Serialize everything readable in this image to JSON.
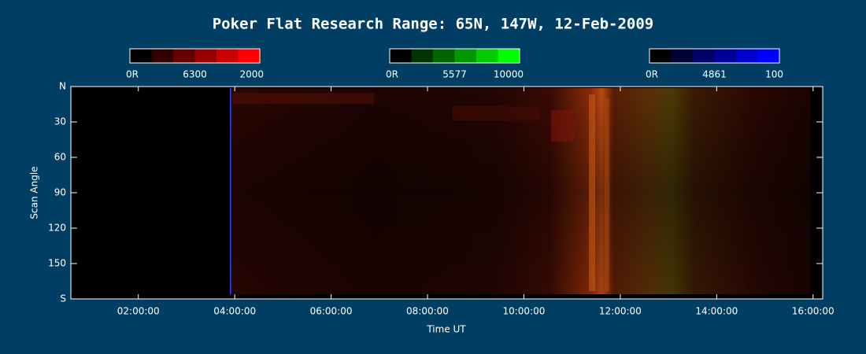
{
  "chart_data": {
    "type": "keogram",
    "title": "Poker Flat Research Range: 65N, 147W, 12-Feb-2009",
    "xlabel": "Time UT",
    "ylabel": "Scan Angle",
    "colorbars": [
      {
        "min_label": "0R",
        "name": "6300",
        "max_label": "2000",
        "colors": [
          "#000000",
          "#330000",
          "#660000",
          "#990000",
          "#cc0000",
          "#ff0000"
        ]
      },
      {
        "min_label": "0R",
        "name": "5577",
        "max_label": "10000",
        "colors": [
          "#000000",
          "#003300",
          "#006600",
          "#009900",
          "#00cc00",
          "#00ff00"
        ]
      },
      {
        "min_label": "0R",
        "name": "4861",
        "max_label": "100",
        "colors": [
          "#000000",
          "#000033",
          "#000066",
          "#000099",
          "#0000cc",
          "#0000ff"
        ]
      }
    ],
    "xlim": [
      0.6,
      16.2
    ],
    "xticks": [
      {
        "value": 2,
        "label": "02:00:00"
      },
      {
        "value": 4,
        "label": "04:00:00"
      },
      {
        "value": 6,
        "label": "06:00:00"
      },
      {
        "value": 8,
        "label": "08:00:00"
      },
      {
        "value": 10,
        "label": "10:00:00"
      },
      {
        "value": 12,
        "label": "12:00:00"
      },
      {
        "value": 14,
        "label": "14:00:00"
      },
      {
        "value": 16,
        "label": "16:00:00"
      }
    ],
    "ylim": [
      0,
      180
    ],
    "yticks": [
      {
        "value": 0,
        "label": "N"
      },
      30,
      60,
      90,
      120,
      150,
      {
        "value": 180,
        "label": "S"
      }
    ]
  }
}
